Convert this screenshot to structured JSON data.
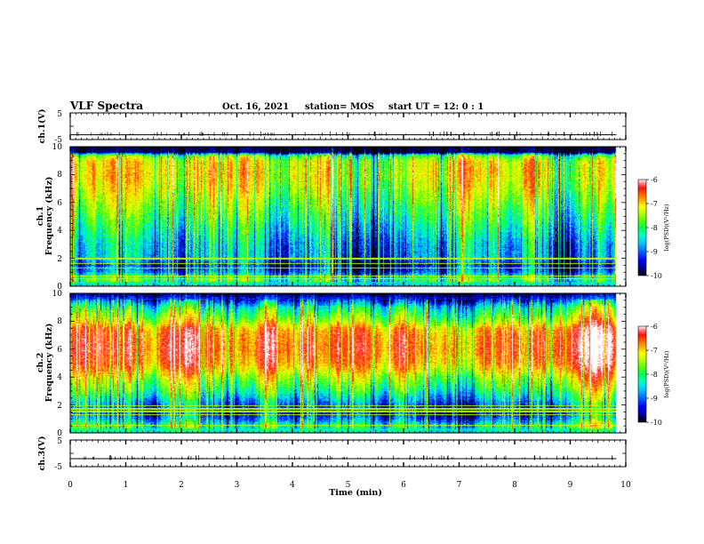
{
  "header": {
    "title": "VLF Spectra",
    "date": "Oct. 16, 2021",
    "station": "station= MOS",
    "start_ut": "start  UT =   12: 0  : 1"
  },
  "chart_data": [
    {
      "type": "line",
      "panel": "ch1-waveform",
      "ylabel": "ch.1(V)",
      "ylim": [
        -5,
        5
      ],
      "y_ticks": [
        "5",
        "-5"
      ],
      "xlim": [
        0,
        10
      ],
      "baseline": -3.2,
      "grid": false
    },
    {
      "type": "heatmap",
      "panel": "ch1-spectrogram",
      "ylabel": "ch.1\nFrequency (kHz)",
      "ylim": [
        0,
        10
      ],
      "y_ticks": [
        "0",
        "2",
        "4",
        "6",
        "8",
        "10"
      ],
      "xlim": [
        0,
        9.83
      ],
      "colorbar": {
        "label": "log(PSD)(V²/Hz)",
        "range": [
          -10,
          -6
        ],
        "ticks": [
          "-6",
          "-7",
          "-8",
          "-9",
          "-10"
        ]
      },
      "noise_lines_khz": [
        0.5,
        0.7,
        1.3,
        1.6,
        1.9,
        2.0
      ],
      "band_profile_khz": [
        [
          0,
          -8.8
        ],
        [
          0.5,
          -8.2
        ],
        [
          1.0,
          -9.2
        ],
        [
          1.5,
          -9.5
        ],
        [
          2.0,
          -9.0
        ],
        [
          3.0,
          -8.9
        ],
        [
          4.0,
          -8.6
        ],
        [
          5.0,
          -8.3
        ],
        [
          6.0,
          -8.0
        ],
        [
          7.0,
          -7.7
        ],
        [
          8.0,
          -7.5
        ],
        [
          9.0,
          -7.6
        ],
        [
          9.4,
          -8.2
        ],
        [
          9.6,
          -9.8
        ],
        [
          10.0,
          -10
        ]
      ]
    },
    {
      "type": "heatmap",
      "panel": "ch2-spectrogram",
      "ylabel": "ch.2\nFrequency (kHz)",
      "ylim": [
        0,
        10
      ],
      "y_ticks": [
        "0",
        "2",
        "4",
        "6",
        "8",
        "10"
      ],
      "xlim": [
        0,
        9.83
      ],
      "colorbar": {
        "label": "log(PSD)(V²/Hz)",
        "range": [
          -10,
          -6
        ],
        "ticks": [
          "-6",
          "-7",
          "-8",
          "-9",
          "-10"
        ]
      },
      "noise_lines_khz": [
        0.5,
        1.3,
        1.5,
        1.7,
        1.9
      ],
      "band_profile_khz": [
        [
          0,
          -8.6
        ],
        [
          0.5,
          -8.3
        ],
        [
          1.0,
          -9.0
        ],
        [
          1.5,
          -9.4
        ],
        [
          2.0,
          -9.0
        ],
        [
          3.0,
          -8.2
        ],
        [
          4.0,
          -7.6
        ],
        [
          4.5,
          -7.2
        ],
        [
          5.0,
          -6.9
        ],
        [
          6.0,
          -6.7
        ],
        [
          7.0,
          -6.8
        ],
        [
          7.5,
          -7.0
        ],
        [
          8.0,
          -7.6
        ],
        [
          9.0,
          -8.4
        ],
        [
          9.5,
          -9.2
        ],
        [
          10.0,
          -9.8
        ]
      ]
    },
    {
      "type": "line",
      "panel": "ch3-waveform",
      "ylabel": "ch.3(V)",
      "ylim": [
        -5,
        5
      ],
      "y_ticks": [
        "5",
        "-5"
      ],
      "xlim": [
        0,
        10
      ],
      "baseline": -2.0,
      "grid": false
    }
  ],
  "x_axis": {
    "label": "Time  (min)",
    "ticks": [
      "0",
      "1",
      "2",
      "3",
      "4",
      "5",
      "6",
      "7",
      "8",
      "9",
      "10"
    ]
  },
  "colors": {
    "colormap": [
      "#000000",
      "#00008b",
      "#0000ff",
      "#0070ff",
      "#00c8ff",
      "#00ffc8",
      "#00ff50",
      "#60ff00",
      "#c8ff00",
      "#ffff00",
      "#ffb000",
      "#ff6000",
      "#ff1010",
      "#ff8080",
      "#ffffff"
    ],
    "axis": "#000000"
  }
}
